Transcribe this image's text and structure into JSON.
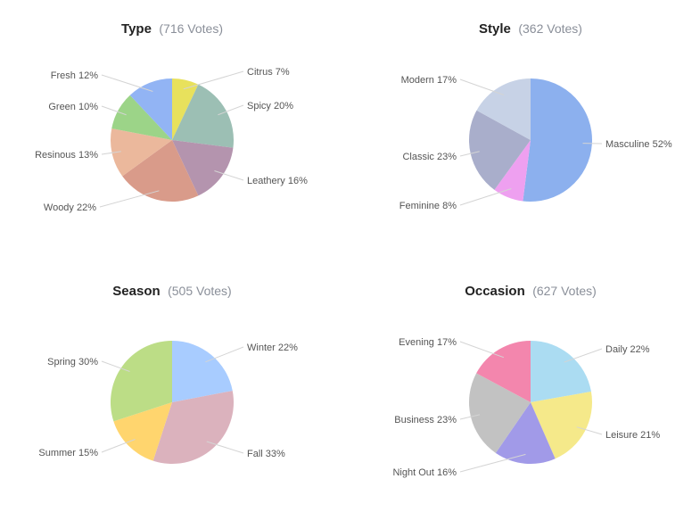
{
  "chart_data": [
    {
      "type": "pie",
      "title": "Type",
      "votes_text": "(716 Votes)",
      "slices": [
        {
          "label": "Citrus",
          "value": 7,
          "color": "#e8e15c"
        },
        {
          "label": "Spicy",
          "value": 20,
          "color": "#9cbfb4"
        },
        {
          "label": "Leathery",
          "value": 16,
          "color": "#b494ae"
        },
        {
          "label": "Woody",
          "value": 22,
          "color": "#d99b8a"
        },
        {
          "label": "Resinous",
          "value": 13,
          "color": "#ebb89c"
        },
        {
          "label": "Green",
          "value": 10,
          "color": "#9cd488"
        },
        {
          "label": "Fresh",
          "value": 12,
          "color": "#92b4f4"
        }
      ]
    },
    {
      "type": "pie",
      "title": "Style",
      "votes_text": "(362 Votes)",
      "slices": [
        {
          "label": "Masculine",
          "value": 52,
          "color": "#8cb0ee"
        },
        {
          "label": "Feminine",
          "value": 8,
          "color": "#eea0f0"
        },
        {
          "label": "Classic",
          "value": 23,
          "color": "#a9aecb"
        },
        {
          "label": "Modern",
          "value": 17,
          "color": "#c7d2e6"
        }
      ]
    },
    {
      "type": "pie",
      "title": "Season",
      "votes_text": "(505 Votes)",
      "slices": [
        {
          "label": "Winter",
          "value": 22,
          "color": "#a8ccff"
        },
        {
          "label": "Fall",
          "value": 33,
          "color": "#dbb2bd"
        },
        {
          "label": "Summer",
          "value": 15,
          "color": "#ffd56e"
        },
        {
          "label": "Spring",
          "value": 30,
          "color": "#bcdd86"
        }
      ]
    },
    {
      "type": "pie",
      "title": "Occasion",
      "votes_text": "(627 Votes)",
      "slices": [
        {
          "label": "Daily",
          "value": 22,
          "color": "#abdcf2"
        },
        {
          "label": "Leisure",
          "value": 21,
          "color": "#f5e98a"
        },
        {
          "label": "Night Out",
          "value": 16,
          "color": "#a19ae8"
        },
        {
          "label": "Business",
          "value": 23,
          "color": "#c2c2c2"
        },
        {
          "label": "Evening",
          "value": 17,
          "color": "#f386ad"
        }
      ]
    }
  ]
}
